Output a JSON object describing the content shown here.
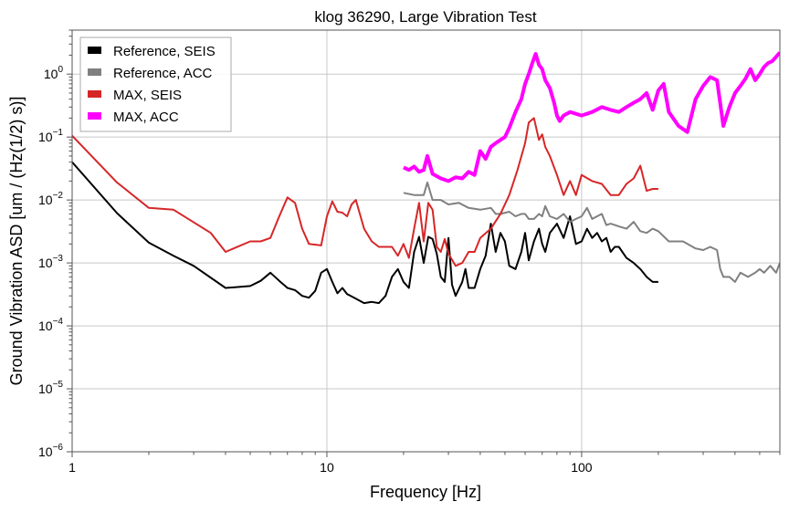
{
  "chart_data": {
    "type": "line",
    "title": "klog 36290, Large Vibration Test",
    "xlabel": "Frequency [Hz]",
    "ylabel": "Ground Vibration ASD [um / (Hz(1/2) s)]",
    "xscale": "log",
    "yscale": "log",
    "xlim": [
      1,
      600
    ],
    "ylim": [
      1e-06,
      5
    ],
    "grid": true,
    "legend_position": "top-left",
    "x_ticks": [
      {
        "value": 1,
        "label": "1"
      },
      {
        "value": 10,
        "label": "10"
      },
      {
        "value": 100,
        "label": "100"
      }
    ],
    "y_ticks": [
      {
        "value": 1e-06,
        "base": "10",
        "exp": "−6"
      },
      {
        "value": 1e-05,
        "base": "10",
        "exp": "−5"
      },
      {
        "value": 0.0001,
        "base": "10",
        "exp": "−4"
      },
      {
        "value": 0.001,
        "base": "10",
        "exp": "−3"
      },
      {
        "value": 0.01,
        "base": "10",
        "exp": "−2"
      },
      {
        "value": 0.1,
        "base": "10",
        "exp": "−1"
      },
      {
        "value": 1,
        "base": "10",
        "exp": "0"
      }
    ],
    "series": [
      {
        "name": "Reference, SEIS",
        "color": "#000000",
        "x": [
          1,
          1.5,
          2,
          2.5,
          3,
          4,
          5,
          5.5,
          6,
          6.5,
          7,
          7.5,
          8,
          8.5,
          9,
          9.5,
          10,
          10.5,
          11,
          11.5,
          12,
          13,
          14,
          15,
          16,
          17,
          18,
          19,
          20,
          21,
          22,
          23,
          24,
          25,
          26,
          27,
          28,
          29,
          30,
          31,
          32,
          34,
          35,
          36,
          38,
          40,
          42,
          44,
          46,
          48,
          50,
          52,
          55,
          58,
          60,
          62,
          65,
          68,
          70,
          72,
          75,
          80,
          85,
          90,
          95,
          100,
          105,
          110,
          115,
          120,
          125,
          130,
          135,
          140,
          150,
          160,
          170,
          180,
          190,
          200
        ],
        "y": [
          0.04,
          0.0062,
          0.0021,
          0.0013,
          0.0009,
          0.0004,
          0.00043,
          0.00052,
          0.0007,
          0.00052,
          0.0004,
          0.00037,
          0.0003,
          0.00028,
          0.00036,
          0.0007,
          0.0008,
          0.0005,
          0.00033,
          0.0004,
          0.00032,
          0.00027,
          0.00023,
          0.00024,
          0.00023,
          0.0003,
          0.0006,
          0.0008,
          0.0005,
          0.0004,
          0.0015,
          0.0026,
          0.001,
          0.0026,
          0.0024,
          0.0014,
          0.0006,
          0.0005,
          0.0025,
          0.00045,
          0.0003,
          0.0005,
          0.0008,
          0.0004,
          0.0004,
          0.0008,
          0.0013,
          0.0042,
          0.0015,
          0.003,
          0.0022,
          0.0009,
          0.0008,
          0.0015,
          0.003,
          0.0011,
          0.0022,
          0.0035,
          0.002,
          0.0015,
          0.003,
          0.0042,
          0.0025,
          0.0055,
          0.002,
          0.0022,
          0.0035,
          0.0025,
          0.003,
          0.0022,
          0.0025,
          0.0015,
          0.0018,
          0.0018,
          0.0012,
          0.001,
          0.0008,
          0.0006,
          0.0005,
          0.0005
        ]
      },
      {
        "name": "Reference, ACC",
        "color": "#808080",
        "x": [
          20,
          22,
          24,
          24.8,
          26,
          28,
          30,
          33,
          36,
          40,
          44,
          46,
          48,
          52,
          55,
          58,
          60,
          62,
          65,
          68,
          70,
          72,
          75,
          80,
          85,
          90,
          95,
          100,
          105,
          110,
          115,
          120,
          125,
          130,
          140,
          150,
          160,
          170,
          180,
          190,
          200,
          220,
          250,
          280,
          300,
          320,
          340,
          350,
          360,
          380,
          400,
          420,
          450,
          480,
          500,
          520,
          550,
          580,
          600
        ],
        "y": [
          0.013,
          0.012,
          0.012,
          0.019,
          0.01,
          0.01,
          0.0085,
          0.009,
          0.0075,
          0.007,
          0.0075,
          0.006,
          0.006,
          0.0065,
          0.0055,
          0.006,
          0.006,
          0.005,
          0.005,
          0.006,
          0.0055,
          0.008,
          0.0055,
          0.005,
          0.006,
          0.0045,
          0.005,
          0.0055,
          0.0075,
          0.005,
          0.0055,
          0.006,
          0.004,
          0.0042,
          0.0038,
          0.0035,
          0.0045,
          0.0032,
          0.003,
          0.0035,
          0.0032,
          0.0022,
          0.0022,
          0.0017,
          0.0016,
          0.0018,
          0.0016,
          0.0008,
          0.0006,
          0.0006,
          0.0005,
          0.0007,
          0.0006,
          0.0007,
          0.0008,
          0.0007,
          0.0009,
          0.0007,
          0.001
        ]
      },
      {
        "name": "MAX, SEIS",
        "color": "#d62728",
        "x": [
          1,
          1.5,
          2,
          2.5,
          3.5,
          4,
          5,
          5.5,
          6,
          6.5,
          7,
          7.5,
          8,
          8.5,
          9.5,
          10,
          10.5,
          11,
          11.5,
          12,
          12.5,
          13,
          14,
          15,
          16,
          17,
          18,
          19,
          20,
          21,
          22,
          23,
          24,
          25,
          26,
          27,
          28,
          29,
          30,
          32,
          34,
          36,
          38,
          40,
          44,
          48,
          52,
          56,
          60,
          62,
          65,
          68,
          70,
          72,
          75,
          80,
          85,
          90,
          95,
          100,
          110,
          120,
          130,
          140,
          150,
          160,
          170,
          180,
          190,
          200
        ],
        "y": [
          0.105,
          0.019,
          0.0075,
          0.007,
          0.003,
          0.0015,
          0.0022,
          0.0022,
          0.0025,
          0.0055,
          0.011,
          0.009,
          0.0035,
          0.002,
          0.0019,
          0.0055,
          0.0095,
          0.0065,
          0.0063,
          0.0055,
          0.0085,
          0.01,
          0.0035,
          0.0022,
          0.0018,
          0.0018,
          0.0018,
          0.0013,
          0.002,
          0.0012,
          0.0035,
          0.009,
          0.0022,
          0.009,
          0.007,
          0.0018,
          0.0015,
          0.0024,
          0.0014,
          0.0009,
          0.001,
          0.0015,
          0.0015,
          0.0025,
          0.0035,
          0.006,
          0.012,
          0.03,
          0.08,
          0.17,
          0.2,
          0.09,
          0.11,
          0.07,
          0.05,
          0.025,
          0.012,
          0.02,
          0.012,
          0.025,
          0.02,
          0.018,
          0.012,
          0.012,
          0.018,
          0.022,
          0.035,
          0.014,
          0.015,
          0.015
        ]
      },
      {
        "name": "MAX, ACC",
        "color": "#ff00ff",
        "x": [
          20,
          21,
          22,
          23,
          24,
          24.8,
          26,
          28,
          30,
          32,
          34,
          36,
          38,
          40,
          42,
          44,
          46,
          48,
          50,
          52,
          55,
          58,
          60,
          62,
          64,
          66,
          68,
          70,
          72,
          75,
          78,
          80,
          82,
          85,
          90,
          100,
          110,
          120,
          130,
          140,
          150,
          160,
          170,
          180,
          190,
          200,
          210,
          220,
          240,
          260,
          280,
          300,
          320,
          340,
          360,
          380,
          400,
          420,
          440,
          460,
          480,
          500,
          520,
          540,
          560,
          600
        ],
        "y": [
          0.033,
          0.03,
          0.034,
          0.028,
          0.03,
          0.05,
          0.026,
          0.022,
          0.02,
          0.023,
          0.022,
          0.028,
          0.025,
          0.06,
          0.045,
          0.07,
          0.08,
          0.09,
          0.1,
          0.14,
          0.25,
          0.4,
          0.7,
          1.0,
          1.5,
          2.1,
          1.4,
          1.2,
          0.8,
          0.6,
          0.35,
          0.22,
          0.18,
          0.22,
          0.25,
          0.22,
          0.25,
          0.3,
          0.27,
          0.25,
          0.3,
          0.35,
          0.4,
          0.5,
          0.27,
          0.55,
          0.7,
          0.25,
          0.15,
          0.12,
          0.4,
          0.65,
          0.9,
          0.8,
          0.15,
          0.3,
          0.5,
          0.65,
          0.85,
          1.2,
          0.8,
          1.0,
          1.3,
          1.5,
          1.6,
          2.2
        ]
      }
    ]
  }
}
